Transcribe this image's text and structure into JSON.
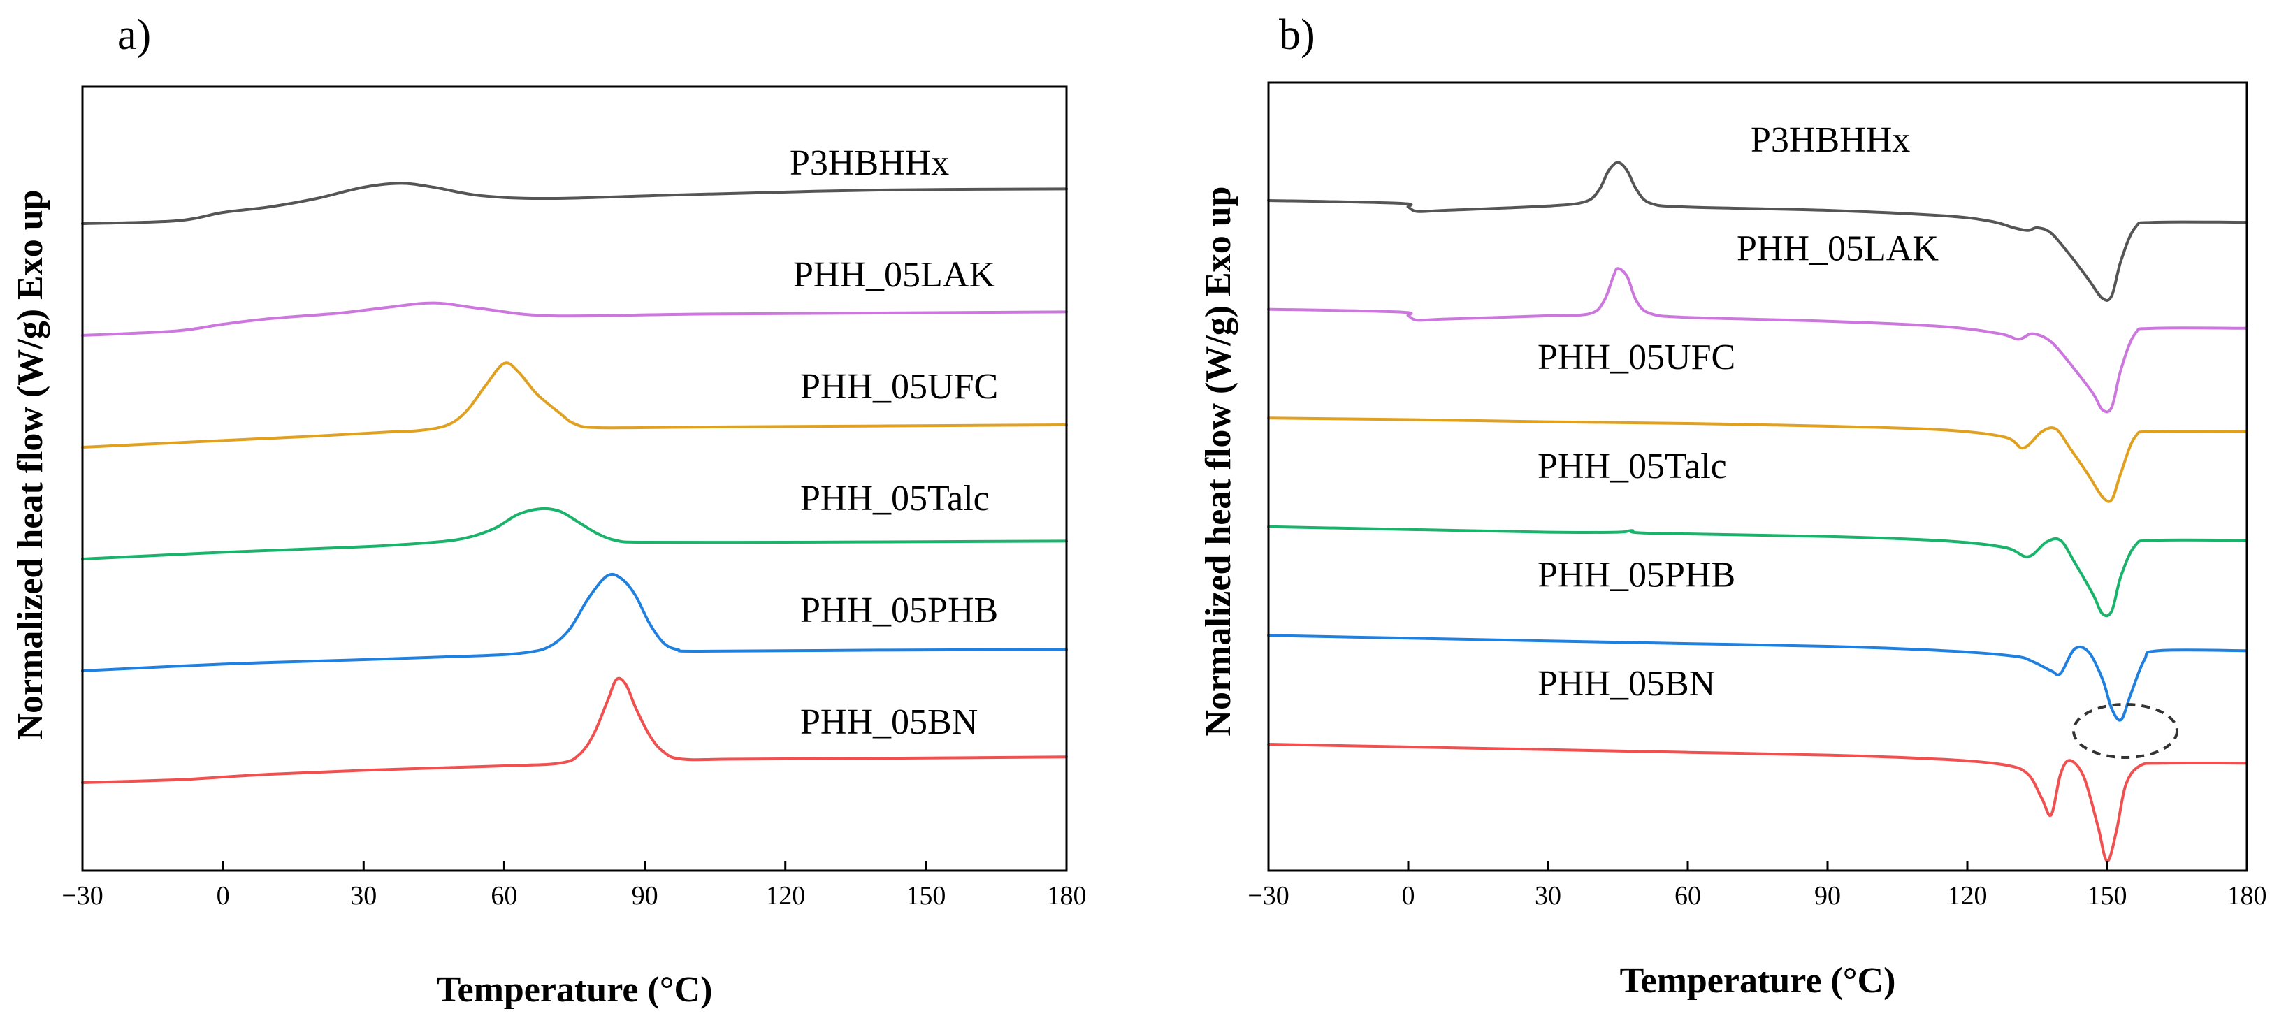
{
  "chart_data": [
    {
      "type": "line",
      "panel_label": "a)",
      "xlabel": "Temperature (°C)",
      "ylabel": "Normalized heat flow (W/g) Exo up",
      "xlim": [
        -30,
        180
      ],
      "xticks": [
        -30,
        0,
        30,
        60,
        90,
        120,
        150,
        180
      ],
      "xtick_labels": [
        "−30",
        "0",
        "30",
        "60",
        "90",
        "120",
        "150",
        "180"
      ],
      "y_units": "arbitrary (stacked, normalized)",
      "series": [
        {
          "name": "P3HBHHx",
          "color": "#555555",
          "baseline": 10.0,
          "points": [
            [
              -30,
              10.0
            ],
            [
              -10,
              10.05
            ],
            [
              0,
              10.2
            ],
            [
              10,
              10.3
            ],
            [
              20,
              10.45
            ],
            [
              30,
              10.65
            ],
            [
              38,
              10.72
            ],
            [
              45,
              10.65
            ],
            [
              55,
              10.5
            ],
            [
              70,
              10.45
            ],
            [
              100,
              10.52
            ],
            [
              140,
              10.6
            ],
            [
              180,
              10.62
            ]
          ]
        },
        {
          "name": "PHH_05LAK",
          "color": "#cc77dd",
          "baseline": 8.0,
          "points": [
            [
              -30,
              8.0
            ],
            [
              -10,
              8.08
            ],
            [
              0,
              8.2
            ],
            [
              10,
              8.3
            ],
            [
              25,
              8.4
            ],
            [
              35,
              8.5
            ],
            [
              45,
              8.58
            ],
            [
              55,
              8.48
            ],
            [
              70,
              8.35
            ],
            [
              100,
              8.38
            ],
            [
              140,
              8.4
            ],
            [
              180,
              8.42
            ]
          ]
        },
        {
          "name": "PHH_05UFC",
          "color": "#e0a020",
          "baseline": 6.0,
          "points": [
            [
              -30,
              6.0
            ],
            [
              0,
              6.12
            ],
            [
              20,
              6.2
            ],
            [
              35,
              6.27
            ],
            [
              42,
              6.3
            ],
            [
              48,
              6.4
            ],
            [
              52,
              6.65
            ],
            [
              56,
              7.1
            ],
            [
              60,
              7.5
            ],
            [
              63,
              7.35
            ],
            [
              67,
              6.95
            ],
            [
              72,
              6.6
            ],
            [
              75,
              6.42
            ],
            [
              80,
              6.35
            ],
            [
              100,
              6.36
            ],
            [
              140,
              6.38
            ],
            [
              180,
              6.4
            ]
          ]
        },
        {
          "name": "PHH_05Talc",
          "color": "#1ab36b",
          "baseline": 4.0,
          "points": [
            [
              -30,
              4.0
            ],
            [
              0,
              4.12
            ],
            [
              30,
              4.22
            ],
            [
              45,
              4.3
            ],
            [
              52,
              4.38
            ],
            [
              58,
              4.55
            ],
            [
              63,
              4.8
            ],
            [
              68,
              4.9
            ],
            [
              72,
              4.85
            ],
            [
              76,
              4.65
            ],
            [
              80,
              4.45
            ],
            [
              84,
              4.33
            ],
            [
              90,
              4.3
            ],
            [
              120,
              4.3
            ],
            [
              150,
              4.31
            ],
            [
              180,
              4.32
            ]
          ]
        },
        {
          "name": "PHH_05PHB",
          "color": "#1f80e0",
          "baseline": 2.0,
          "points": [
            [
              -30,
              2.0
            ],
            [
              0,
              2.12
            ],
            [
              30,
              2.2
            ],
            [
              55,
              2.27
            ],
            [
              65,
              2.33
            ],
            [
              70,
              2.45
            ],
            [
              74,
              2.75
            ],
            [
              78,
              3.3
            ],
            [
              82,
              3.7
            ],
            [
              85,
              3.65
            ],
            [
              88,
              3.35
            ],
            [
              91,
              2.85
            ],
            [
              94,
              2.5
            ],
            [
              97,
              2.38
            ],
            [
              102,
              2.35
            ],
            [
              140,
              2.37
            ],
            [
              180,
              2.38
            ]
          ]
        },
        {
          "name": "PHH_05BN",
          "color": "#f05050",
          "baseline": 0.0,
          "points": [
            [
              -30,
              0.0
            ],
            [
              -10,
              0.05
            ],
            [
              0,
              0.1
            ],
            [
              10,
              0.15
            ],
            [
              30,
              0.22
            ],
            [
              60,
              0.3
            ],
            [
              72,
              0.35
            ],
            [
              76,
              0.5
            ],
            [
              79,
              0.85
            ],
            [
              82,
              1.45
            ],
            [
              84,
              1.85
            ],
            [
              86,
              1.75
            ],
            [
              88,
              1.35
            ],
            [
              91,
              0.85
            ],
            [
              94,
              0.55
            ],
            [
              98,
              0.42
            ],
            [
              110,
              0.42
            ],
            [
              150,
              0.44
            ],
            [
              180,
              0.46
            ]
          ]
        }
      ]
    },
    {
      "type": "line",
      "panel_label": "b)",
      "xlabel": "Temperature (°C)",
      "ylabel": "Normalized heat flow (W/g) Exo up",
      "xlim": [
        -30,
        180
      ],
      "xticks": [
        -30,
        0,
        30,
        60,
        90,
        120,
        150,
        180
      ],
      "xtick_labels": [
        "−30",
        "0",
        "30",
        "60",
        "90",
        "120",
        "150",
        "180"
      ],
      "y_units": "arbitrary (stacked, normalized)",
      "annotation": "dashed ellipse highlighting PHH_05PHB melting peak near 152 °C",
      "series": [
        {
          "name": "P3HBHHx",
          "color": "#555555",
          "baseline": 10.0,
          "points": [
            [
              -30,
              10.0
            ],
            [
              -2,
              9.95
            ],
            [
              0,
              9.88
            ],
            [
              2,
              9.8
            ],
            [
              8,
              9.82
            ],
            [
              30,
              9.9
            ],
            [
              38,
              9.98
            ],
            [
              41,
              10.2
            ],
            [
              43,
              10.55
            ],
            [
              45,
              10.7
            ],
            [
              47,
              10.55
            ],
            [
              49,
              10.2
            ],
            [
              52,
              9.95
            ],
            [
              60,
              9.88
            ],
            [
              90,
              9.82
            ],
            [
              115,
              9.72
            ],
            [
              125,
              9.62
            ],
            [
              130,
              9.5
            ],
            [
              133,
              9.45
            ],
            [
              135,
              9.5
            ],
            [
              138,
              9.4
            ],
            [
              142,
              9.0
            ],
            [
              146,
              8.55
            ],
            [
              149,
              8.2
            ],
            [
              151,
              8.25
            ],
            [
              153,
              8.9
            ],
            [
              156,
              9.5
            ],
            [
              160,
              9.6
            ],
            [
              180,
              9.6
            ]
          ]
        },
        {
          "name": "PHH_05LAK",
          "color": "#cc77dd",
          "baseline": 8.0,
          "points": [
            [
              -30,
              8.0
            ],
            [
              -2,
              7.95
            ],
            [
              0,
              7.88
            ],
            [
              2,
              7.8
            ],
            [
              8,
              7.82
            ],
            [
              30,
              7.88
            ],
            [
              39,
              7.92
            ],
            [
              42,
              8.15
            ],
            [
              44,
              8.6
            ],
            [
              45,
              8.75
            ],
            [
              47,
              8.6
            ],
            [
              49,
              8.15
            ],
            [
              52,
              7.92
            ],
            [
              60,
              7.85
            ],
            [
              90,
              7.78
            ],
            [
              115,
              7.68
            ],
            [
              127,
              7.55
            ],
            [
              131,
              7.45
            ],
            [
              134,
              7.55
            ],
            [
              138,
              7.4
            ],
            [
              143,
              6.9
            ],
            [
              147,
              6.45
            ],
            [
              149,
              6.15
            ],
            [
              151,
              6.2
            ],
            [
              153,
              6.9
            ],
            [
              156,
              7.55
            ],
            [
              160,
              7.65
            ],
            [
              180,
              7.65
            ]
          ]
        },
        {
          "name": "PHH_05UFC",
          "color": "#e0a020",
          "baseline": 6.0,
          "points": [
            [
              -30,
              6.0
            ],
            [
              0,
              5.97
            ],
            [
              30,
              5.93
            ],
            [
              60,
              5.9
            ],
            [
              90,
              5.85
            ],
            [
              115,
              5.78
            ],
            [
              128,
              5.65
            ],
            [
              132,
              5.45
            ],
            [
              136,
              5.75
            ],
            [
              139,
              5.8
            ],
            [
              142,
              5.45
            ],
            [
              146,
              4.95
            ],
            [
              149,
              4.55
            ],
            [
              151,
              4.5
            ],
            [
              153,
              5.0
            ],
            [
              156,
              5.65
            ],
            [
              160,
              5.75
            ],
            [
              180,
              5.75
            ]
          ]
        },
        {
          "name": "PHH_05Talc",
          "color": "#1ab36b",
          "baseline": 4.0,
          "points": [
            [
              -30,
              4.0
            ],
            [
              0,
              3.95
            ],
            [
              30,
              3.9
            ],
            [
              45,
              3.9
            ],
            [
              48,
              3.93
            ],
            [
              52,
              3.88
            ],
            [
              90,
              3.82
            ],
            [
              115,
              3.74
            ],
            [
              128,
              3.62
            ],
            [
              133,
              3.45
            ],
            [
              137,
              3.72
            ],
            [
              140,
              3.75
            ],
            [
              143,
              3.35
            ],
            [
              147,
              2.75
            ],
            [
              149,
              2.4
            ],
            [
              151,
              2.45
            ],
            [
              153,
              3.1
            ],
            [
              156,
              3.65
            ],
            [
              160,
              3.75
            ],
            [
              180,
              3.75
            ]
          ]
        },
        {
          "name": "PHH_05PHB",
          "color": "#1f80e0",
          "baseline": 2.0,
          "points": [
            [
              -30,
              2.0
            ],
            [
              0,
              1.95
            ],
            [
              30,
              1.9
            ],
            [
              60,
              1.85
            ],
            [
              90,
              1.8
            ],
            [
              115,
              1.72
            ],
            [
              130,
              1.62
            ],
            [
              134,
              1.52
            ],
            [
              138,
              1.35
            ],
            [
              140,
              1.3
            ],
            [
              143,
              1.75
            ],
            [
              146,
              1.7
            ],
            [
              149,
              1.2
            ],
            [
              151,
              0.65
            ],
            [
              153,
              0.45
            ],
            [
              155,
              0.9
            ],
            [
              158,
              1.55
            ],
            [
              161,
              1.72
            ],
            [
              180,
              1.72
            ]
          ]
        },
        {
          "name": "PHH_05BN",
          "color": "#f05050",
          "baseline": 0.0,
          "points": [
            [
              -30,
              0.0
            ],
            [
              0,
              -0.05
            ],
            [
              30,
              -0.1
            ],
            [
              60,
              -0.15
            ],
            [
              90,
              -0.2
            ],
            [
              115,
              -0.28
            ],
            [
              128,
              -0.38
            ],
            [
              133,
              -0.55
            ],
            [
              136,
              -1.0
            ],
            [
              138,
              -1.3
            ],
            [
              140,
              -0.55
            ],
            [
              142,
              -0.3
            ],
            [
              145,
              -0.6
            ],
            [
              148,
              -1.5
            ],
            [
              150,
              -2.15
            ],
            [
              152,
              -1.6
            ],
            [
              154,
              -0.75
            ],
            [
              157,
              -0.4
            ],
            [
              162,
              -0.35
            ],
            [
              180,
              -0.35
            ]
          ]
        }
      ]
    }
  ]
}
